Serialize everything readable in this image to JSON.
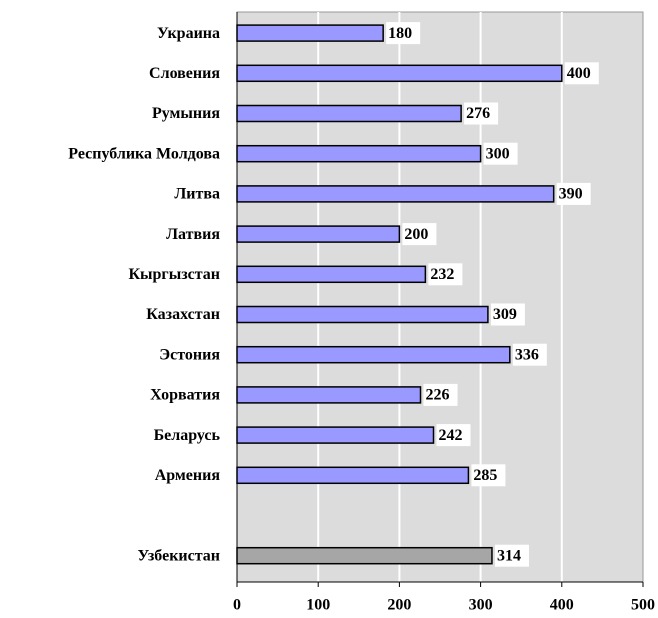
{
  "chart_data": {
    "type": "hbar",
    "categories": [
      "Украина",
      "Словения",
      "Румыния",
      "Республика Молдова",
      "Литва",
      "Латвия",
      "Кыргызстан",
      "Казахстан",
      "Эстония",
      "Хорватия",
      "Беларусь",
      "Армения",
      null,
      "Узбекистан"
    ],
    "values": [
      180,
      400,
      276,
      300,
      390,
      200,
      232,
      309,
      336,
      226,
      242,
      285,
      null,
      314
    ],
    "colors": [
      "#9999ff",
      "#9999ff",
      "#9999ff",
      "#9999ff",
      "#9999ff",
      "#9999ff",
      "#9999ff",
      "#9999ff",
      "#9999ff",
      "#9999ff",
      "#9999ff",
      "#9999ff",
      null,
      "#a6a6a6"
    ],
    "xlim": [
      0,
      500
    ],
    "xticks": [
      0,
      100,
      200,
      300,
      400,
      500
    ],
    "grid": true
  }
}
